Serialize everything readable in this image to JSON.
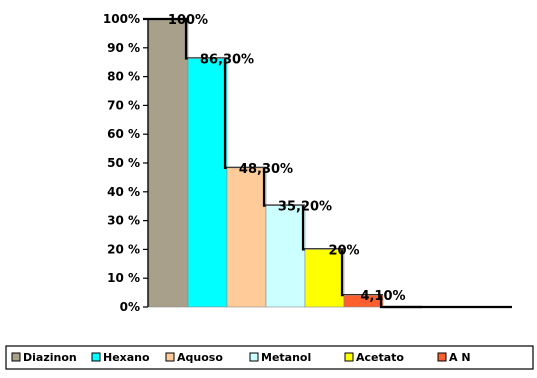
{
  "chart_data": {
    "type": "bar",
    "title": "",
    "xlabel": "",
    "ylabel": "",
    "ylim": [
      0,
      100
    ],
    "ytick_values": [
      0,
      10,
      20,
      30,
      40,
      50,
      60,
      70,
      80,
      90,
      100
    ],
    "yticks": [
      "0%",
      "10 %",
      "20 %",
      "30 %",
      "40 %",
      "50 %",
      "60 %",
      "70 %",
      "80 %",
      "90 %",
      "100%"
    ],
    "categories": [
      "Diazinon",
      "Hexano",
      "Aquoso",
      "Metanol",
      "Acetato",
      "A N"
    ],
    "values": [
      100,
      86.3,
      48.3,
      35.2,
      20,
      4.1
    ],
    "data_labels": [
      "100%",
      "86,30%",
      "48,30%",
      "35,20%",
      "20%",
      "4,10%"
    ],
    "colors": [
      "#a8a08a",
      "#00ffff",
      "#ffcc99",
      "#ccffff",
      "#ffff00",
      "#ff5f2e"
    ],
    "grid": false,
    "legend_position": "bottom"
  }
}
